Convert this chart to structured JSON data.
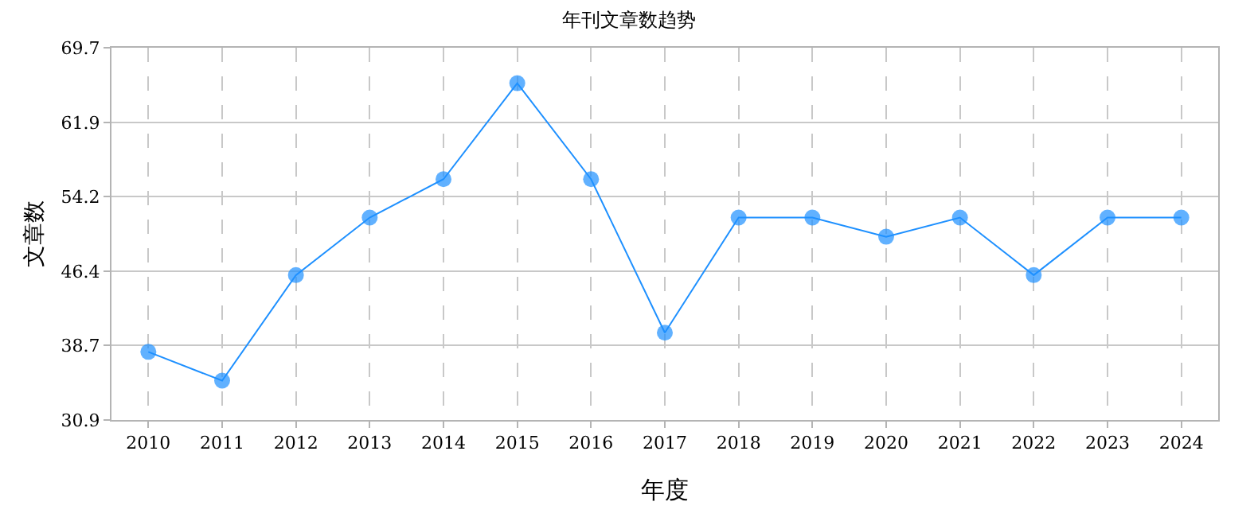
{
  "chart_data": {
    "type": "line",
    "title": "年刊文章数趋势",
    "xlabel": "年度",
    "ylabel": "文章数",
    "categories": [
      "2010",
      "2011",
      "2012",
      "2013",
      "2014",
      "2015",
      "2016",
      "2017",
      "2018",
      "2019",
      "2020",
      "2021",
      "2022",
      "2023",
      "2024"
    ],
    "series": [
      {
        "color": "#1e90ff",
        "values": [
          38,
          35,
          46,
          52,
          56,
          66,
          56,
          40,
          52,
          52,
          50,
          52,
          46,
          52,
          52
        ]
      }
    ],
    "ylim": [
      30.9,
      69.7
    ],
    "yticks": [
      30.9,
      38.7,
      46.4,
      54.2,
      61.9,
      69.7
    ],
    "grid": true,
    "marker": "circle",
    "line_style": "solid"
  }
}
